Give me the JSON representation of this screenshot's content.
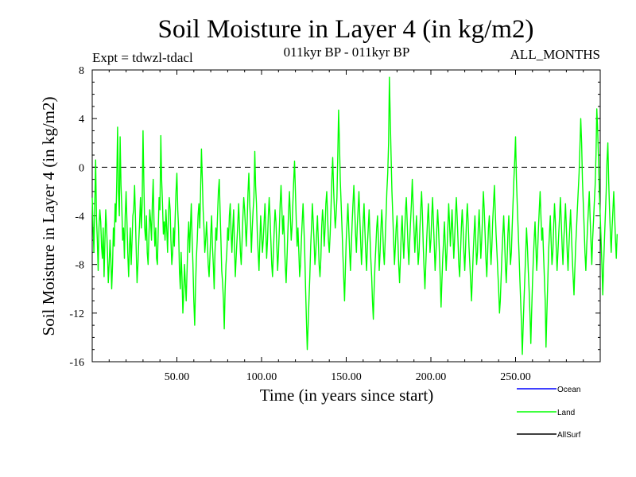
{
  "chart_data": {
    "type": "line",
    "title": "Soil Moisture in Layer 4 (in kg/m2)",
    "subtitle_left": "Expt = tdwzl-tdacl",
    "subtitle_center": "011kyr BP - 011kyr BP",
    "subtitle_right": "ALL_MONTHS",
    "xlabel": "Time (in years since start)",
    "ylabel": "Soil Moisture in Layer 4 (in kg/m2)",
    "xlim": [
      0,
      300
    ],
    "ylim": [
      -16,
      8
    ],
    "x_ticks": [
      50,
      100,
      150,
      200,
      250
    ],
    "x_tick_labels": [
      "50.00",
      "100.00",
      "150.00",
      "200.00",
      "250.00"
    ],
    "y_ticks": [
      -16,
      -12,
      -8,
      -4,
      0,
      4,
      8
    ],
    "y_tick_labels": [
      "-16",
      "-12",
      "-8",
      "-4",
      "0",
      "4",
      "8"
    ],
    "reference_line": 0,
    "legend": [
      {
        "name": "Ocean",
        "color": "#0000ff"
      },
      {
        "name": "Land",
        "color": "#00ff00"
      },
      {
        "name": "AllSurf",
        "color": "#000000"
      }
    ],
    "series": [
      {
        "name": "Land",
        "color": "#00ff00",
        "x_start": 0,
        "x_step": 0.5,
        "values": [
          -2.5,
          -5.0,
          -7.0,
          -3.0,
          0.6,
          -4.0,
          -6.0,
          -8.5,
          -5.0,
          -3.5,
          -4.5,
          -6.5,
          -7.5,
          -5.0,
          -9.0,
          -6.0,
          -3.5,
          -5.0,
          -7.0,
          -9.5,
          -8.0,
          -6.0,
          -7.5,
          -10.0,
          -8.0,
          -5.0,
          -6.5,
          -3.0,
          -4.5,
          -1.0,
          3.3,
          -2.0,
          -4.0,
          2.5,
          -1.5,
          -3.5,
          -6.0,
          -5.0,
          -7.5,
          -4.0,
          -2.0,
          -4.5,
          -7.0,
          -9.0,
          -6.5,
          -5.0,
          -8.0,
          -6.0,
          -4.0,
          -3.5,
          -1.5,
          -4.0,
          -7.0,
          -9.5,
          -8.0,
          -6.0,
          -4.5,
          -2.5,
          -5.0,
          -3.0,
          3.0,
          -1.5,
          -5.0,
          -6.0,
          -4.0,
          -7.0,
          -8.0,
          -5.5,
          -3.5,
          -4.5,
          -6.0,
          -3.0,
          -1.0,
          -4.5,
          -6.5,
          -5.0,
          -7.5,
          -8.0,
          -5.0,
          -2.5,
          -3.5,
          2.6,
          -1.0,
          -3.0,
          -5.5,
          -4.5,
          -6.0,
          -3.5,
          -5.0,
          -7.0,
          -4.0,
          -2.5,
          -3.5,
          -6.0,
          -8.0,
          -7.0,
          -5.0,
          -6.5,
          -4.0,
          -2.0,
          -0.5,
          -3.5,
          -5.0,
          -8.5,
          -10.0,
          -7.0,
          -9.0,
          -12.0,
          -10.5,
          -8.0,
          -9.5,
          -11.0,
          -8.5,
          -6.0,
          -4.5,
          -7.0,
          -5.0,
          -3.0,
          -6.0,
          -8.0,
          -11.0,
          -13.0,
          -10.0,
          -7.5,
          -6.0,
          -4.0,
          -3.0,
          -5.0,
          -2.0,
          1.5,
          -1.0,
          -3.5,
          -5.0,
          -7.0,
          -6.0,
          -4.5,
          -6.0,
          -8.0,
          -9.0,
          -7.5,
          -5.5,
          -4.0,
          -6.5,
          -8.0,
          -10.0,
          -7.0,
          -5.0,
          -6.0,
          -4.0,
          -2.0,
          -1.0,
          -3.5,
          -6.0,
          -8.5,
          -9.5,
          -11.0,
          -13.3,
          -10.0,
          -8.0,
          -7.0,
          -5.0,
          -6.0,
          -4.0,
          -3.0,
          -5.5,
          -7.0,
          -5.0,
          -3.5,
          -6.5,
          -9.0,
          -7.5,
          -6.0,
          -4.5,
          -3.0,
          -5.0,
          -7.0,
          -8.0,
          -6.0,
          -4.0,
          -2.5,
          -3.5,
          -5.0,
          -6.5,
          -4.5,
          -2.0,
          -0.5,
          -3.0,
          -4.5,
          -7.0,
          -5.0,
          -3.5,
          -2.5,
          1.3,
          -1.5,
          -3.0,
          -5.5,
          -7.0,
          -8.5,
          -6.0,
          -4.0,
          -5.5,
          -7.0,
          -6.0,
          -4.5,
          -3.0,
          -5.0,
          -7.5,
          -6.0,
          -4.0,
          -2.5,
          -4.0,
          -6.0,
          -8.0,
          -9.0,
          -7.0,
          -5.0,
          -3.5,
          -4.5,
          -6.5,
          -8.5,
          -7.0,
          -5.0,
          -3.0,
          -1.5,
          -3.5,
          -5.5,
          -4.0,
          -6.0,
          -8.0,
          -9.5,
          -7.5,
          -5.5,
          -3.5,
          -2.0,
          -4.0,
          -6.0,
          -5.0,
          -3.0,
          -1.0,
          0.5,
          -2.0,
          -4.5,
          -6.5,
          -5.0,
          -7.0,
          -9.0,
          -8.0,
          -6.0,
          -4.5,
          -3.0,
          -5.0,
          -7.0,
          -10.0,
          -12.5,
          -15.0,
          -13.0,
          -11.0,
          -9.0,
          -6.5,
          -5.0,
          -3.0,
          -4.5,
          -6.0,
          -8.0,
          -7.0,
          -5.5,
          -4.0,
          -6.0,
          -8.0,
          -9.0,
          -7.5,
          -5.0,
          -3.5,
          -4.5,
          -6.5,
          -5.0,
          -3.0,
          -2.0,
          -4.0,
          -6.0,
          -7.0,
          -5.5,
          -3.5,
          -1.0,
          0.8,
          -1.5,
          -3.5,
          -5.0,
          -4.0,
          -2.5,
          1.0,
          4.7,
          2.0,
          -1.0,
          -3.0,
          -5.0,
          -7.0,
          -9.0,
          -11.0,
          -8.5,
          -6.0,
          -4.5,
          -3.0,
          -5.0,
          -7.0,
          -8.5,
          -6.5,
          -4.5,
          -3.0,
          -1.5,
          -3.5,
          -5.5,
          -7.0,
          -5.0,
          -3.5,
          -2.0,
          -4.0,
          -6.0,
          -8.0,
          -6.5,
          -4.5,
          -3.0,
          -5.0,
          -7.0,
          -8.5,
          -6.5,
          -5.0,
          -3.5,
          -5.5,
          -7.5,
          -9.0,
          -11.0,
          -12.5,
          -10.0,
          -8.0,
          -6.5,
          -5.0,
          -4.0,
          -6.0,
          -8.5,
          -7.0,
          -5.0,
          -3.5,
          -5.0,
          -7.0,
          -8.0,
          -6.0,
          -4.0,
          -2.0,
          -0.5,
          2.0,
          7.4,
          4.0,
          1.0,
          -2.0,
          -4.0,
          -6.0,
          -8.0,
          -6.5,
          -5.0,
          -4.0,
          -6.0,
          -8.0,
          -9.5,
          -7.5,
          -5.5,
          -4.0,
          -6.0,
          -7.5,
          -5.5,
          -3.5,
          -2.5,
          -4.5,
          -6.5,
          -8.0,
          -6.0,
          -4.5,
          -3.0,
          -1.0,
          -3.0,
          -5.0,
          -7.0,
          -5.5,
          -4.0,
          -6.0,
          -8.0,
          -7.0,
          -5.0,
          -3.5,
          -2.0,
          -4.0,
          -6.5,
          -8.5,
          -10.0,
          -8.0,
          -6.0,
          -4.5,
          -3.0,
          -5.0,
          -7.0,
          -6.0,
          -4.0,
          -2.5,
          -4.5,
          -6.5,
          -8.5,
          -7.0,
          -5.0,
          -3.5,
          -5.0,
          -7.0,
          -9.0,
          -11.5,
          -9.5,
          -7.5,
          -6.0,
          -4.5,
          -6.5,
          -8.5,
          -7.0,
          -5.0,
          -3.0,
          -4.5,
          -6.5,
          -5.0,
          -3.5,
          -5.5,
          -7.5,
          -6.0,
          -4.0,
          -2.5,
          -4.0,
          -6.0,
          -8.0,
          -9.0,
          -7.0,
          -5.0,
          -3.5,
          -5.0,
          -7.0,
          -8.5,
          -6.5,
          -4.5,
          -3.0,
          -4.5,
          -6.5,
          -8.0,
          -9.5,
          -11.0,
          -9.0,
          -7.0,
          -5.5,
          -4.0,
          -6.0,
          -8.0,
          -7.0,
          -5.0,
          -3.5,
          -5.5,
          -7.5,
          -6.0,
          -4.0,
          -2.0,
          -3.5,
          -5.5,
          -7.5,
          -9.0,
          -7.0,
          -5.0,
          -4.0,
          -6.0,
          -8.0,
          -6.5,
          -4.5,
          -3.0,
          -1.5,
          -3.5,
          -5.5,
          -7.0,
          -8.5,
          -10.0,
          -12.0,
          -11.0,
          -9.0,
          -7.0,
          -5.5,
          -4.0,
          -6.0,
          -8.0,
          -9.5,
          -7.5,
          -5.5,
          -4.0,
          -6.0,
          -8.0,
          -7.0,
          -5.0,
          -3.0,
          -1.0,
          0.5,
          2.5,
          -1.0,
          -3.0,
          -5.0,
          -7.0,
          -9.0,
          -11.0,
          -13.0,
          -15.4,
          -13.0,
          -11.0,
          -9.0,
          -7.0,
          -5.0,
          -6.5,
          -8.5,
          -10.0,
          -12.0,
          -14.5,
          -12.0,
          -9.5,
          -7.5,
          -6.0,
          -4.5,
          -6.5,
          -8.5,
          -7.0,
          -5.0,
          -3.5,
          -2.0,
          -4.0,
          -6.0,
          -5.0,
          -7.0,
          -9.0,
          -11.0,
          -14.8,
          -12.0,
          -9.5,
          -7.0,
          -5.5,
          -4.0,
          -6.0,
          -8.0,
          -7.0,
          -5.0,
          -3.0,
          -4.5,
          -6.5,
          -8.5,
          -7.0,
          -5.5,
          -4.0,
          -2.5,
          -4.5,
          -6.5,
          -8.0,
          -6.0,
          -4.5,
          -3.0,
          -5.0,
          -7.0,
          -8.5,
          -6.5,
          -5.0,
          -3.5,
          -5.5,
          -7.5,
          -9.0,
          -10.5,
          -8.5,
          -6.5,
          -5.0,
          -3.5,
          -2.0,
          -0.5,
          1.5,
          4.0,
          2.0,
          -1.0,
          -3.0,
          -5.0,
          -7.0,
          -8.5,
          -6.5,
          -5.0,
          -3.5,
          -2.0,
          -4.0,
          -6.0,
          -8.0,
          -6.0,
          -4.5,
          -3.0,
          -1.5,
          1.0,
          4.8,
          3.0,
          0.5,
          -2.0,
          -4.0,
          -6.0,
          -8.0,
          -10.5,
          -8.0,
          -6.0,
          -4.0,
          -2.0,
          0.5,
          2.0,
          -1.0,
          -3.5,
          -5.5,
          -7.0,
          -5.0,
          -3.5,
          -2.0,
          -4.0,
          -6.0,
          -7.5,
          -5.5
        ]
      }
    ]
  }
}
